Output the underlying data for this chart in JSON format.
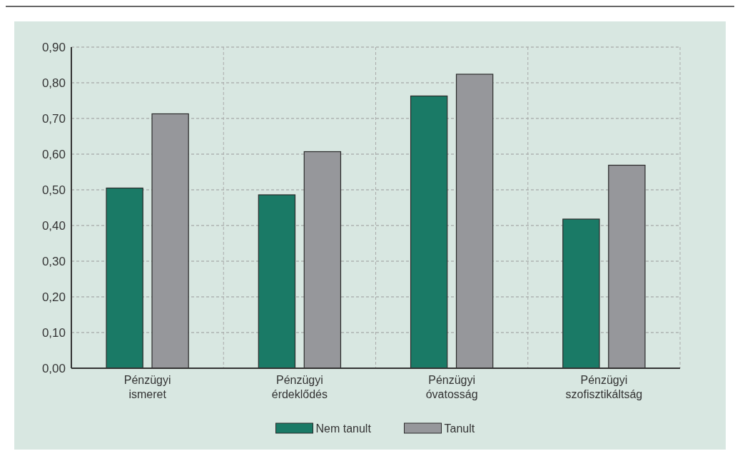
{
  "chart_data": {
    "type": "bar",
    "categories": [
      "Pénzügyi\nismeret",
      "Pénzügyi\nérdeklődés",
      "Pénzügyi\nóvatosság",
      "Pénzügyi\nszofisztikáltság"
    ],
    "series": [
      {
        "name": "Nem tanult",
        "color": "#1a7a66",
        "values": [
          0.505,
          0.486,
          0.763,
          0.418
        ]
      },
      {
        "name": "Tanult",
        "color": "#96979b",
        "values": [
          0.713,
          0.607,
          0.824,
          0.569
        ]
      }
    ],
    "ylim": [
      0,
      0.9
    ],
    "yticks": [
      {
        "value": 0,
        "label": "0,00"
      },
      {
        "value": 0.1,
        "label": "0,10"
      },
      {
        "value": 0.2,
        "label": "0,20"
      },
      {
        "value": 0.3,
        "label": "0,30"
      },
      {
        "value": 0.4,
        "label": "0,40"
      },
      {
        "value": 0.5,
        "label": "0,50"
      },
      {
        "value": 0.6,
        "label": "0,60"
      },
      {
        "value": 0.7,
        "label": "0,70"
      },
      {
        "value": 0.8,
        "label": "0,80"
      },
      {
        "value": 0.9,
        "label": "0,90"
      }
    ],
    "grid": true,
    "legend": "bottom"
  }
}
